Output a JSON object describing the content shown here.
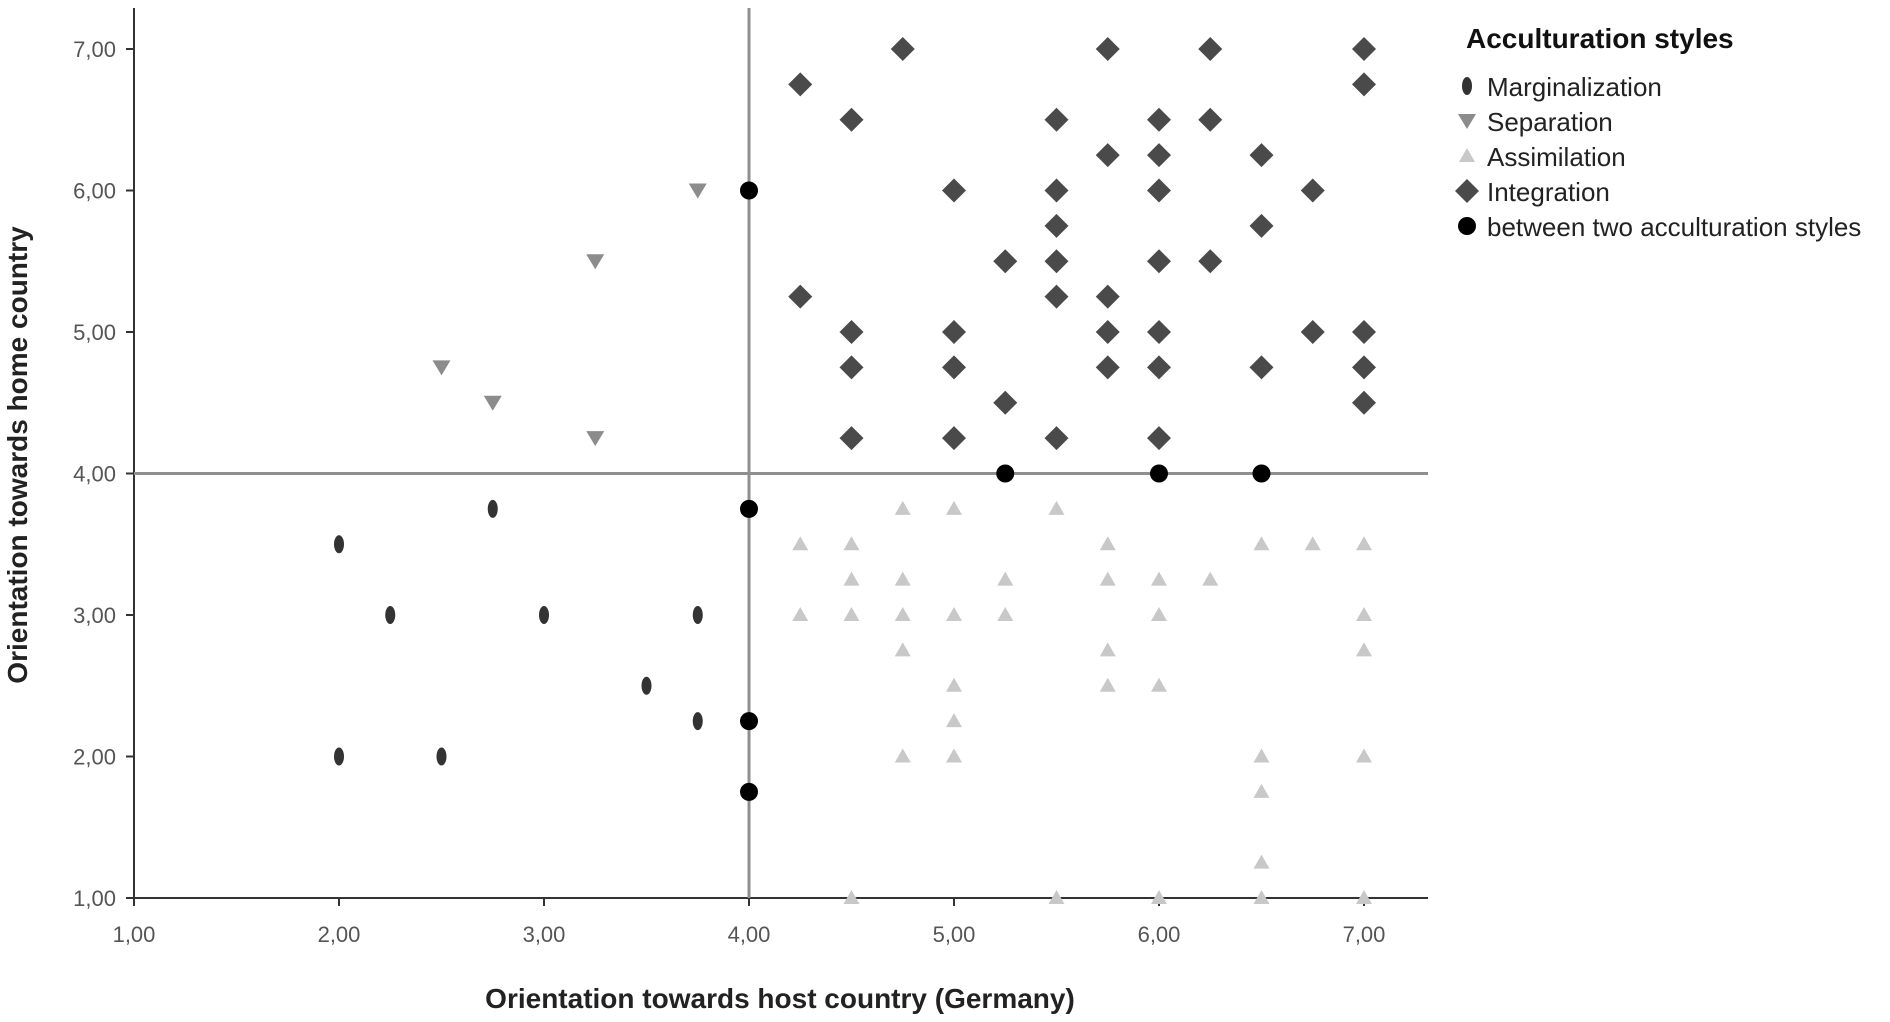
{
  "chart_data": {
    "type": "scatter",
    "xlabel": "Orientation towards host country (Germany)",
    "ylabel": "Orientation towards home country",
    "xlim": [
      1,
      7.3
    ],
    "ylim": [
      1,
      7.6
    ],
    "x_ticks": [
      "1,00",
      "2,00",
      "3,00",
      "4,00",
      "5,00",
      "6,00",
      "7,00"
    ],
    "y_ticks": [
      "1,00",
      "2,00",
      "3,00",
      "4,00",
      "5,00",
      "6,00",
      "7,00"
    ],
    "reference_lines": {
      "x": 4,
      "y": 4
    },
    "legend": {
      "title": "Acculturation styles",
      "position": "top-right"
    },
    "series": [
      {
        "name": "Marginalization",
        "marker": "ellipse",
        "color": "#333333",
        "points": [
          [
            2,
            3.5
          ],
          [
            2.25,
            3
          ],
          [
            3,
            3
          ],
          [
            2.75,
            3.75
          ],
          [
            3.75,
            3
          ],
          [
            3.5,
            2.5
          ],
          [
            3.75,
            2.25
          ],
          [
            2,
            2
          ],
          [
            2.5,
            2
          ]
        ]
      },
      {
        "name": "Separation",
        "marker": "triangle-down",
        "color": "#8c8c8c",
        "points": [
          [
            3.75,
            6
          ],
          [
            3.25,
            5.5
          ],
          [
            2.5,
            4.75
          ],
          [
            2.75,
            4.5
          ],
          [
            3.25,
            4.25
          ]
        ]
      },
      {
        "name": "Assimilation",
        "marker": "triangle-up",
        "color": "#c8c8c8",
        "points": [
          [
            4.25,
            3.5
          ],
          [
            4.25,
            3
          ],
          [
            4.5,
            3.5
          ],
          [
            4.5,
            3.25
          ],
          [
            4.5,
            3
          ],
          [
            4.75,
            3.75
          ],
          [
            4.75,
            3.25
          ],
          [
            4.75,
            3
          ],
          [
            4.75,
            2.75
          ],
          [
            4.75,
            2
          ],
          [
            5,
            3.75
          ],
          [
            5,
            3
          ],
          [
            5,
            2.5
          ],
          [
            5,
            2.25
          ],
          [
            5,
            2
          ],
          [
            5.25,
            3.25
          ],
          [
            5.25,
            3
          ],
          [
            5.5,
            3.75
          ],
          [
            5.75,
            3.5
          ],
          [
            5.75,
            3.25
          ],
          [
            5.75,
            2.75
          ],
          [
            5.75,
            2.5
          ],
          [
            6,
            3.25
          ],
          [
            6,
            3
          ],
          [
            6,
            2.5
          ],
          [
            6.25,
            3.25
          ],
          [
            6.5,
            3.5
          ],
          [
            6.5,
            2
          ],
          [
            6.5,
            1.75
          ],
          [
            6.5,
            1.25
          ],
          [
            6.75,
            3.5
          ],
          [
            7,
            3.5
          ],
          [
            7,
            3
          ],
          [
            7,
            2.75
          ],
          [
            7,
            2
          ],
          [
            4.5,
            1
          ],
          [
            5.5,
            1
          ],
          [
            6,
            1
          ],
          [
            6.5,
            1
          ],
          [
            7,
            1
          ]
        ]
      },
      {
        "name": "Integration",
        "marker": "diamond",
        "color": "#4a4a4a",
        "points": [
          [
            4.25,
            6.75
          ],
          [
            4.75,
            7
          ],
          [
            4.5,
            6.5
          ],
          [
            5.5,
            6.5
          ],
          [
            5.75,
            7
          ],
          [
            6,
            6.5
          ],
          [
            6.25,
            7
          ],
          [
            6.25,
            6.5
          ],
          [
            7,
            7
          ],
          [
            7,
            6.75
          ],
          [
            5.75,
            6.25
          ],
          [
            6,
            6.25
          ],
          [
            6.5,
            6.25
          ],
          [
            5,
            6
          ],
          [
            5.5,
            6
          ],
          [
            6,
            6
          ],
          [
            6.75,
            6
          ],
          [
            5.5,
            5.75
          ],
          [
            6.5,
            5.75
          ],
          [
            5.25,
            5.5
          ],
          [
            5.5,
            5.5
          ],
          [
            6,
            5.5
          ],
          [
            6.25,
            5.5
          ],
          [
            4.25,
            5.25
          ],
          [
            5.5,
            5.25
          ],
          [
            5.75,
            5.25
          ],
          [
            4.5,
            5
          ],
          [
            5,
            5
          ],
          [
            5.75,
            5
          ],
          [
            6,
            5
          ],
          [
            6.75,
            5
          ],
          [
            7,
            5
          ],
          [
            4.5,
            4.75
          ],
          [
            5,
            4.75
          ],
          [
            5.75,
            4.75
          ],
          [
            6,
            4.75
          ],
          [
            6.5,
            4.75
          ],
          [
            7,
            4.75
          ],
          [
            5.25,
            4.5
          ],
          [
            7,
            4.5
          ],
          [
            4.5,
            4.25
          ],
          [
            5,
            4.25
          ],
          [
            5.5,
            4.25
          ],
          [
            6,
            4.25
          ]
        ]
      },
      {
        "name": "between two acculturation styles",
        "marker": "circle",
        "color": "#000000",
        "points": [
          [
            4,
            6
          ],
          [
            4,
            3.75
          ],
          [
            4,
            2.25
          ],
          [
            4,
            1.75
          ],
          [
            5.25,
            4
          ],
          [
            6,
            4
          ],
          [
            6.5,
            4
          ]
        ]
      }
    ]
  }
}
